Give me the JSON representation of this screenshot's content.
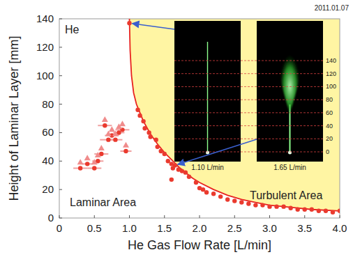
{
  "chart_data": {
    "type": "scatter",
    "x_label": "He Gas Flow Rate [L/min]",
    "y_label": "Height of Laminar Layer [mm]",
    "annotations": {
      "gas": "He",
      "date": "2011.01.07",
      "laminar": "Laminar Area",
      "turbulent": "Turbulent Area"
    },
    "xlim": [
      0,
      4
    ],
    "xticks": [
      0,
      0.5,
      {
        "value": 1,
        "label": "1.0"
      },
      1.5,
      {
        "value": 2,
        "label": "2.0"
      },
      2.5,
      {
        "value": 3,
        "label": "3.0"
      },
      3.5,
      {
        "value": 4,
        "label": "4.0"
      }
    ],
    "ylim": [
      0,
      140
    ],
    "yticks": [
      0,
      20,
      40,
      60,
      80,
      100,
      120,
      140
    ],
    "grid": false,
    "series": [
      {
        "type": "line",
        "color": "#e8231f",
        "line_style": "solid",
        "x": [
          1.0,
          1.01,
          1.03,
          1.06,
          1.1,
          1.15,
          1.2,
          1.3,
          1.4,
          1.5,
          1.6,
          1.7,
          1.8,
          1.9,
          2.0,
          2.2,
          2.4,
          2.6,
          2.8,
          3.0,
          3.3,
          3.6,
          4.0
        ],
        "values": [
          140,
          118,
          100,
          88,
          80,
          74,
          68,
          59,
          52,
          46,
          41,
          36,
          32,
          28,
          25,
          20,
          16,
          13,
          11,
          9,
          7.5,
          6,
          5
        ]
      },
      {
        "type": "scatter",
        "color": "#ea3a2e",
        "marker": "circle",
        "x": [
          1.0,
          1.12,
          1.15,
          1.2,
          1.22,
          1.28,
          1.3,
          1.38,
          1.4,
          1.45,
          1.5,
          1.55,
          1.6,
          1.62,
          1.65,
          1.7,
          1.75,
          1.8,
          1.85,
          1.6,
          1.95,
          2.0,
          2.05,
          2.1,
          2.2,
          2.3,
          2.4,
          2.5,
          2.6,
          2.7,
          2.8,
          2.9,
          3.0,
          3.1,
          3.2,
          3.3,
          3.4,
          3.5,
          3.6,
          3.7,
          3.8,
          3.9,
          4.0
        ],
        "values": [
          137,
          76,
          72,
          68,
          63,
          60,
          57,
          55,
          50,
          47,
          45,
          40,
          38,
          35,
          37,
          34,
          33,
          32,
          29,
          27,
          25,
          21,
          20,
          18,
          17,
          15,
          13,
          12,
          11,
          10,
          9,
          9,
          8,
          8,
          8,
          7,
          6,
          6,
          6,
          5,
          5,
          4,
          5
        ]
      },
      {
        "type": "scatter",
        "color": "#ea3a2e",
        "marker": "circle",
        "x": [
          0.3,
          0.4,
          0.5,
          0.55,
          0.6,
          0.65,
          0.7,
          0.75,
          0.8,
          0.85,
          0.9,
          0.95
        ],
        "values": [
          35,
          38,
          35,
          40,
          45,
          65,
          55,
          58,
          55,
          60,
          62,
          47
        ],
        "x_errors": [
          0.1,
          0.08,
          0.1,
          0.08,
          0.1,
          0.1,
          0.12,
          0.1,
          0.1,
          0.08,
          0.1,
          0.08
        ]
      },
      {
        "type": "scatter",
        "color": "#f08c8c",
        "marker": "triangle",
        "x": [
          0.3,
          0.4,
          0.5,
          0.55,
          0.6,
          0.65,
          0.7,
          0.75,
          0.8,
          0.85,
          0.9,
          0.95
        ],
        "values": [
          39,
          42,
          39,
          44,
          49,
          69,
          59,
          62,
          59,
          64,
          66,
          51
        ]
      }
    ],
    "insets": [
      {
        "label": "1.10 L/min"
      },
      {
        "label": "1.65 L/min"
      }
    ],
    "inset_ticks": [
      0,
      20,
      40,
      60,
      80,
      100,
      120,
      140
    ]
  }
}
